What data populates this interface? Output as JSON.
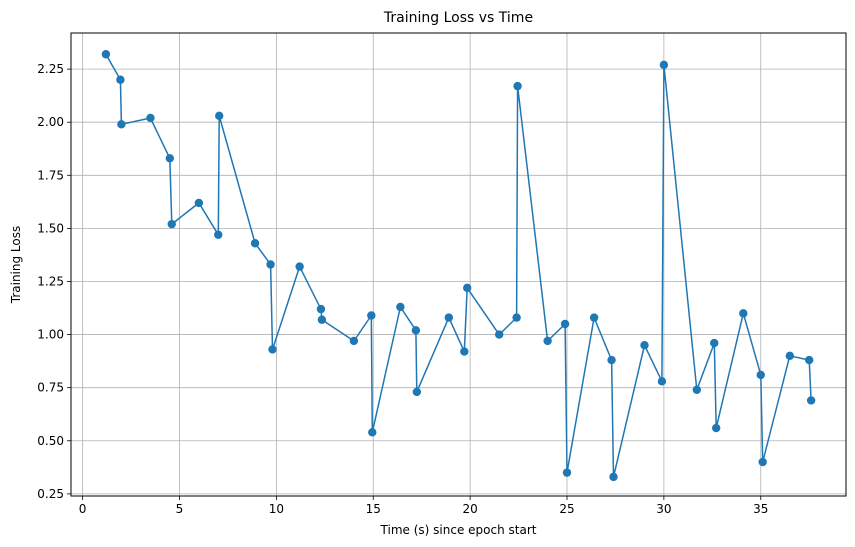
{
  "chart_data": {
    "type": "line",
    "title": "Training Loss vs Time",
    "xlabel": "Time (s) since epoch start",
    "ylabel": "Training Loss",
    "xlim": [
      -0.6,
      39.4
    ],
    "ylim": [
      0.24,
      2.42
    ],
    "xticks": [
      0,
      5,
      10,
      15,
      20,
      25,
      30,
      35
    ],
    "yticks": [
      0.25,
      0.5,
      0.75,
      1.0,
      1.25,
      1.5,
      1.75,
      2.0,
      2.25
    ],
    "ytick_labels": [
      "0.25",
      "0.50",
      "0.75",
      "1.00",
      "1.25",
      "1.50",
      "1.75",
      "2.00",
      "2.25"
    ],
    "grid": true,
    "markers": true,
    "color": "#1f77b4",
    "x": [
      1.2,
      1.95,
      2.0,
      3.5,
      4.5,
      4.6,
      6.0,
      7.0,
      7.05,
      8.9,
      9.7,
      9.8,
      11.2,
      12.3,
      12.35,
      14.0,
      14.9,
      14.95,
      16.4,
      17.2,
      17.25,
      18.9,
      19.7,
      19.85,
      21.5,
      22.4,
      22.45,
      24.0,
      24.9,
      25.0,
      26.4,
      27.3,
      27.4,
      29.0,
      29.9,
      30.0,
      31.7,
      32.6,
      32.7,
      34.1,
      35.0,
      35.1,
      36.5,
      37.5,
      37.6
    ],
    "y": [
      2.32,
      2.2,
      1.99,
      2.02,
      1.83,
      1.52,
      1.62,
      1.47,
      2.03,
      1.43,
      1.33,
      0.93,
      1.32,
      1.12,
      1.07,
      0.97,
      1.09,
      0.54,
      1.13,
      1.02,
      0.73,
      1.08,
      0.92,
      1.22,
      1.0,
      1.08,
      2.17,
      0.97,
      1.05,
      0.35,
      1.08,
      0.88,
      0.33,
      0.95,
      0.78,
      2.27,
      0.74,
      0.96,
      0.56,
      1.1,
      0.81,
      0.4,
      0.9,
      0.88,
      0.69
    ]
  }
}
